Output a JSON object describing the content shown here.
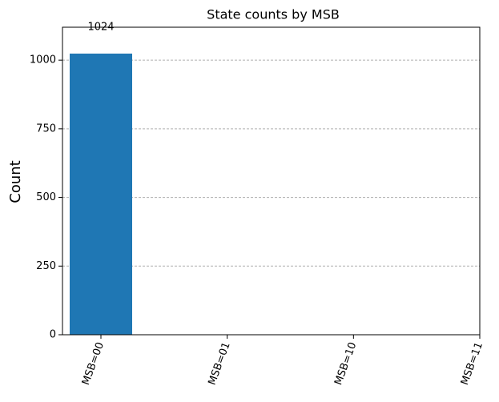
{
  "chart_data": {
    "type": "bar",
    "title": "State counts by MSB",
    "y_label": "Count",
    "categories": [
      "MSB=00",
      "MSB=01",
      "MSB=10",
      "MSB=11"
    ],
    "values": [
      1024,
      0,
      0,
      0
    ],
    "color": "#1f77b4",
    "ylim": [
      0,
      1120
    ],
    "yticks": [
      0,
      250,
      500,
      750,
      1000
    ],
    "grid": true
  }
}
